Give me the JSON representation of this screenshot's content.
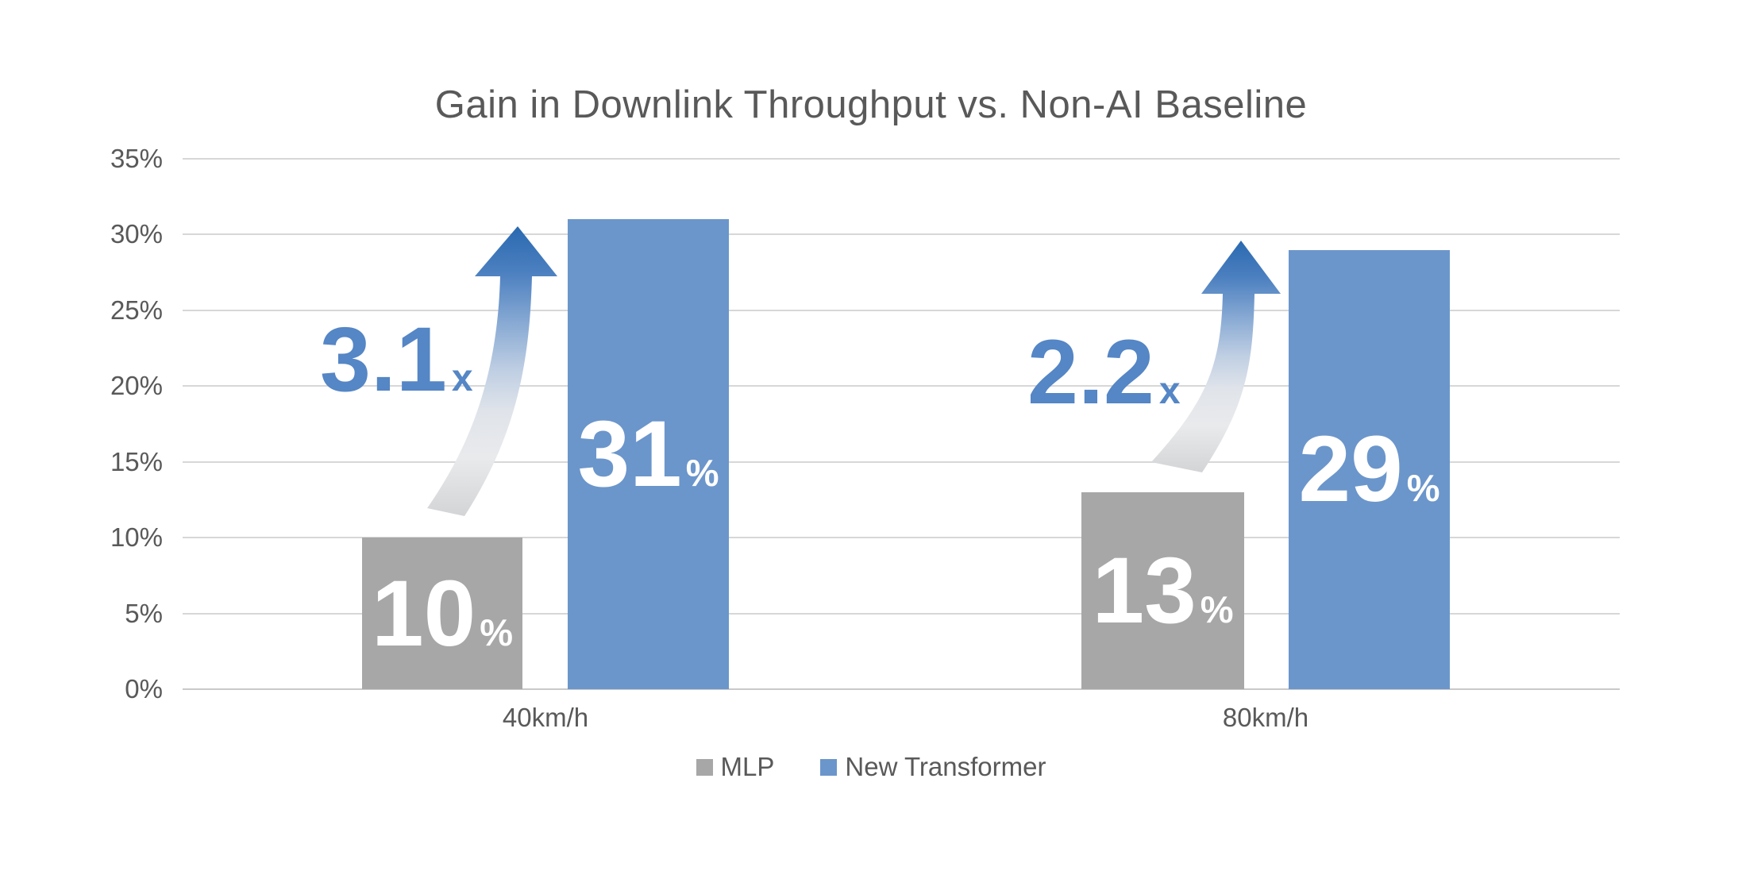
{
  "chart_data": {
    "type": "bar",
    "title": "Gain in Downlink Throughput vs. Non-AI Baseline",
    "categories": [
      "40km/h",
      "80km/h"
    ],
    "series": [
      {
        "name": "MLP",
        "color": "#A7A7A7",
        "values": [
          10,
          13
        ]
      },
      {
        "name": "New Transformer",
        "color": "#6B96CB",
        "values": [
          31,
          29
        ]
      }
    ],
    "value_label_suffix": "%",
    "annotations": [
      {
        "text": "3.1",
        "suffix": "x",
        "category": "40km/h",
        "color": "#5586C5"
      },
      {
        "text": "2.2",
        "suffix": "x",
        "category": "80km/h",
        "color": "#5586C5"
      }
    ],
    "ylim": [
      0,
      35
    ],
    "yticks": [
      0,
      5,
      10,
      15,
      20,
      25,
      30,
      35
    ],
    "ytick_labels": [
      "0%",
      "5%",
      "10%",
      "15%",
      "20%",
      "25%",
      "30%",
      "35%"
    ],
    "xlabel": "",
    "ylabel": "",
    "grid": true,
    "legend_position": "bottom",
    "colors": {
      "title_text": "#595959",
      "axis_text": "#595959",
      "gridline": "#D7D7D7",
      "bar_label_text": "#FFFFFF",
      "arrow_blue": "#2A69B0",
      "arrow_fade": "#D3D4D6"
    }
  }
}
